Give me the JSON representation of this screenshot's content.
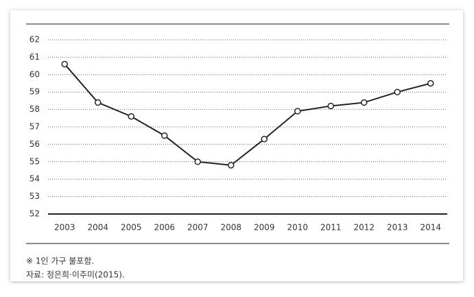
{
  "chart_data": {
    "type": "line",
    "categories": [
      "2003",
      "2004",
      "2005",
      "2006",
      "2007",
      "2008",
      "2009",
      "2010",
      "2011",
      "2012",
      "2013",
      "2014"
    ],
    "values": [
      60.6,
      58.4,
      57.6,
      56.5,
      55.0,
      54.8,
      56.3,
      57.9,
      58.2,
      58.4,
      59.0,
      59.5
    ],
    "color": "#222222",
    "ylim": [
      52,
      62
    ],
    "yticks": [
      52,
      53,
      54,
      55,
      56,
      57,
      58,
      59,
      60,
      61,
      62
    ],
    "grid": true,
    "notes": [
      "※ 1인 가구 불포함.",
      "자료: 정은희·이주미(2015)."
    ]
  }
}
